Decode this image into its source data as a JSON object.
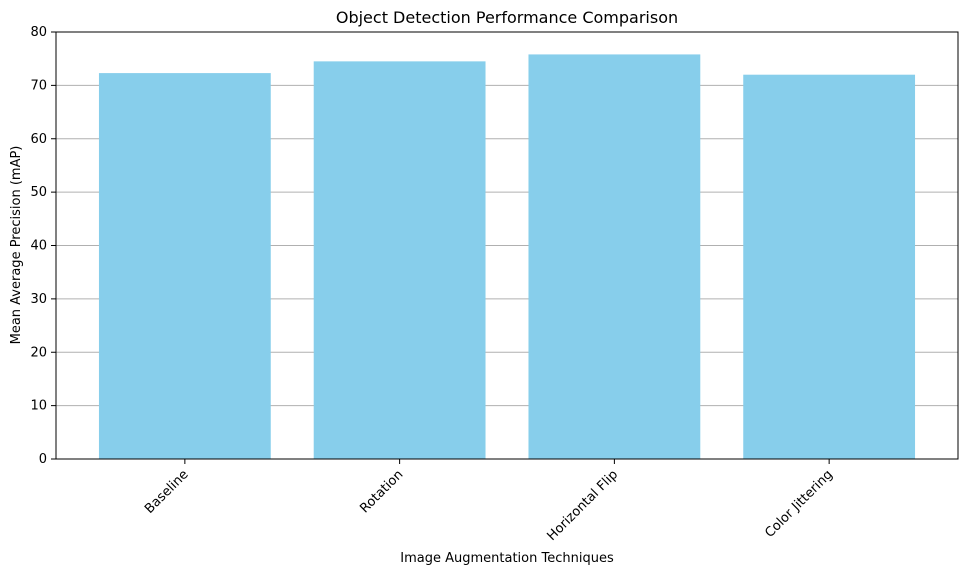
{
  "chart_data": {
    "type": "bar",
    "title": "Object Detection Performance Comparison",
    "xlabel": "Image Augmentation Techniques",
    "ylabel": "Mean Average Precision (mAP)",
    "categories": [
      "Baseline",
      "Rotation",
      "Horizontal Flip",
      "Color Jittering"
    ],
    "values": [
      72.3,
      74.5,
      75.8,
      72.0
    ],
    "ylim": [
      0,
      80
    ],
    "yticks": [
      0,
      10,
      20,
      30,
      40,
      50,
      60,
      70,
      80
    ],
    "grid": "horizontal",
    "bar_color": "#87CEEB"
  }
}
